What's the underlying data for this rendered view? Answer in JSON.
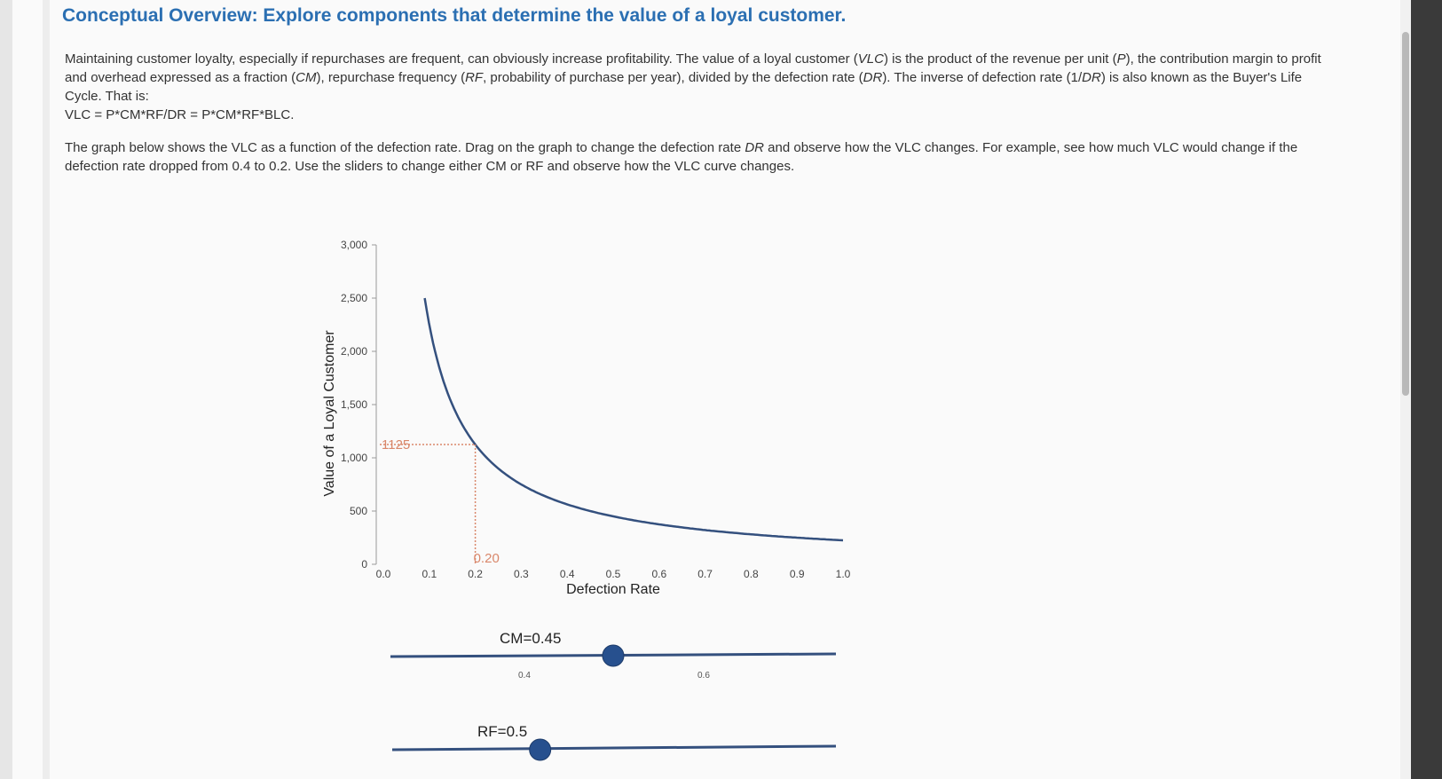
{
  "header": {
    "title": "Conceptual Overview: Explore components that determine the value of a loyal customer."
  },
  "intro": {
    "p1_a": "Maintaining customer loyalty, especially if repurchases are frequent, can obviously increase profitability. The value of a loyal customer (",
    "vlc": "VLC",
    "p1_b": ") is the product of the revenue per unit (",
    "p": "P",
    "p1_c": "), the contribution margin to profit and overhead expressed as a fraction (",
    "cm": "CM",
    "p1_d": "), repurchase frequency (",
    "rf": "RF",
    "p1_e": ", probability of purchase per year), divided by the defection rate (",
    "dr": "DR",
    "p1_f": "). The inverse of defection rate (1/",
    "dr2": "DR",
    "p1_g": ") is also known as the Buyer's Life Cycle. That is:",
    "formula": "VLC = P*CM*RF/DR = P*CM*RF*BLC.",
    "p2_a": "The graph below shows the VLC as a function of the defection rate. Drag on the graph to change the defection rate ",
    "p2_dr": "DR",
    "p2_b": " and observe how the VLC changes. For example, see how much VLC would change if the defection rate dropped from 0.4 to 0.2. Use the sliders to change either CM or RF and observe how the VLC curve changes."
  },
  "chart_data": {
    "type": "line",
    "xlabel": "Defection Rate",
    "ylabel": "Value of a Loyal Customer",
    "xlim": [
      0,
      1.0
    ],
    "ylim": [
      0,
      3000
    ],
    "x_ticks": [
      "0.0",
      "0.1",
      "0.2",
      "0.3",
      "0.4",
      "0.5",
      "0.6",
      "0.7",
      "0.8",
      "0.9",
      "1.0"
    ],
    "y_ticks": [
      "0",
      "500",
      "1,000",
      "1,500",
      "2,000",
      "2,500",
      "3,000"
    ],
    "curve": {
      "numerator": 225,
      "x_start": 0.09,
      "x_end": 1.0
    },
    "marker": {
      "x": 0.2,
      "y": 1125,
      "x_label": "0.20",
      "y_label": "1125"
    },
    "colors": {
      "curve": "#34507e",
      "marker": "#d9876a",
      "axis": "#999999"
    }
  },
  "sliders": {
    "cm": {
      "label": "CM=0.45",
      "value": 0.45,
      "ticks": [
        "0.4",
        "0.6"
      ]
    },
    "rf": {
      "label": "RF=0.5",
      "value": 0.5
    }
  }
}
